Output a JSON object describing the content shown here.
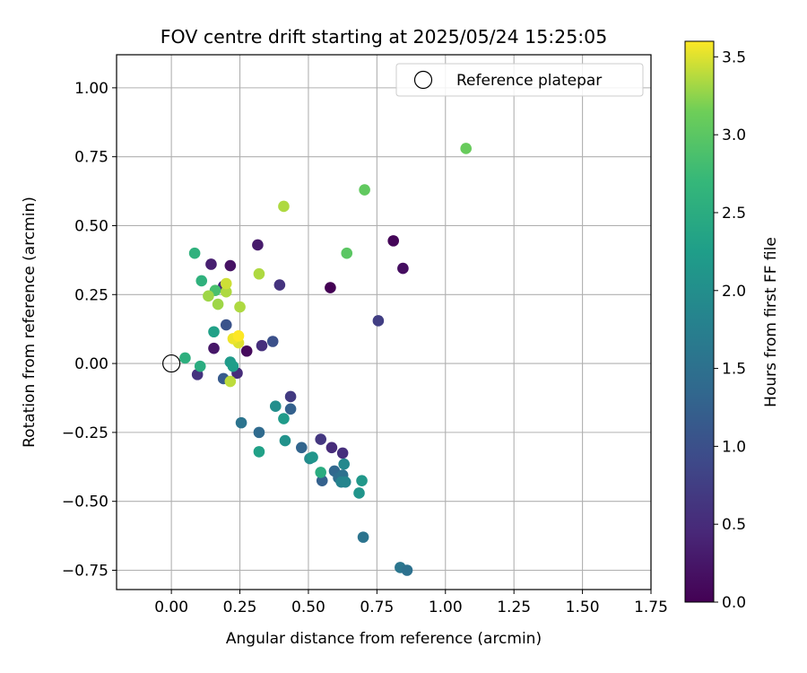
{
  "chart_data": {
    "type": "scatter",
    "title": "FOV centre drift starting at 2025/05/24 15:25:05",
    "xlabel": "Angular distance from reference (arcmin)",
    "ylabel": "Rotation from reference (arcmin)",
    "xlim": [
      -0.2,
      1.75
    ],
    "ylim": [
      -0.82,
      1.12
    ],
    "xticks": [
      0.0,
      0.25,
      0.5,
      0.75,
      1.0,
      1.25,
      1.5,
      1.75
    ],
    "xtick_labels": [
      "0.00",
      "0.25",
      "0.50",
      "0.75",
      "1.00",
      "1.25",
      "1.50",
      "1.75"
    ],
    "yticks": [
      -0.75,
      -0.5,
      -0.25,
      0.0,
      0.25,
      0.5,
      0.75,
      1.0
    ],
    "ytick_labels": [
      "−0.75",
      "−0.50",
      "−0.25",
      "0.00",
      "0.25",
      "0.50",
      "0.75",
      "1.00"
    ],
    "grid": true,
    "legend_position": "top-right",
    "legend_label": "Reference platepar",
    "reference_point": {
      "x": 0.0,
      "y": 0.0
    },
    "colorbar": {
      "label": "Hours from first FF file",
      "range": [
        0.0,
        3.6
      ],
      "ticks": [
        0.0,
        0.5,
        1.0,
        1.5,
        2.0,
        2.5,
        3.0,
        3.5
      ],
      "tick_labels": [
        "0.0",
        "0.5",
        "1.0",
        "1.5",
        "2.0",
        "2.5",
        "3.0",
        "3.5"
      ],
      "colormap": "viridis"
    },
    "points": [
      {
        "x": 0.58,
        "y": 0.275,
        "c": 0.0
      },
      {
        "x": 0.81,
        "y": 0.445,
        "c": 0.05
      },
      {
        "x": 0.845,
        "y": 0.345,
        "c": 0.15
      },
      {
        "x": 0.275,
        "y": 0.045,
        "c": 0.1
      },
      {
        "x": 0.155,
        "y": 0.055,
        "c": 0.25
      },
      {
        "x": 0.215,
        "y": 0.355,
        "c": 0.2
      },
      {
        "x": 0.315,
        "y": 0.43,
        "c": 0.3
      },
      {
        "x": 0.145,
        "y": 0.36,
        "c": 0.35
      },
      {
        "x": 0.095,
        "y": -0.04,
        "c": 0.6
      },
      {
        "x": 0.24,
        "y": -0.035,
        "c": 0.5
      },
      {
        "x": 0.33,
        "y": 0.065,
        "c": 0.55
      },
      {
        "x": 0.19,
        "y": 0.28,
        "c": 0.45
      },
      {
        "x": 0.395,
        "y": 0.285,
        "c": 0.6
      },
      {
        "x": 0.435,
        "y": -0.12,
        "c": 0.7
      },
      {
        "x": 0.545,
        "y": -0.275,
        "c": 0.65
      },
      {
        "x": 0.585,
        "y": -0.305,
        "c": 0.5
      },
      {
        "x": 0.625,
        "y": -0.325,
        "c": 0.55
      },
      {
        "x": 0.755,
        "y": 0.155,
        "c": 0.75
      },
      {
        "x": 0.37,
        "y": 0.08,
        "c": 1.0
      },
      {
        "x": 0.2,
        "y": 0.14,
        "c": 1.05
      },
      {
        "x": 0.19,
        "y": -0.055,
        "c": 1.15
      },
      {
        "x": 0.435,
        "y": -0.165,
        "c": 1.25
      },
      {
        "x": 0.475,
        "y": -0.305,
        "c": 1.3
      },
      {
        "x": 0.55,
        "y": -0.425,
        "c": 1.25
      },
      {
        "x": 0.595,
        "y": -0.39,
        "c": 1.35
      },
      {
        "x": 0.61,
        "y": -0.415,
        "c": 1.45
      },
      {
        "x": 0.625,
        "y": -0.405,
        "c": 1.5
      },
      {
        "x": 0.32,
        "y": -0.25,
        "c": 1.4
      },
      {
        "x": 0.255,
        "y": -0.215,
        "c": 1.55
      },
      {
        "x": 0.7,
        "y": -0.63,
        "c": 1.55
      },
      {
        "x": 0.835,
        "y": -0.74,
        "c": 1.6
      },
      {
        "x": 0.86,
        "y": -0.75,
        "c": 1.5
      },
      {
        "x": 0.62,
        "y": -0.43,
        "c": 1.8
      },
      {
        "x": 0.635,
        "y": -0.43,
        "c": 1.85
      },
      {
        "x": 0.63,
        "y": -0.365,
        "c": 1.9
      },
      {
        "x": 0.505,
        "y": -0.345,
        "c": 1.95
      },
      {
        "x": 0.38,
        "y": -0.155,
        "c": 2.0
      },
      {
        "x": 0.415,
        "y": -0.28,
        "c": 2.05
      },
      {
        "x": 0.515,
        "y": -0.34,
        "c": 2.1
      },
      {
        "x": 0.685,
        "y": -0.47,
        "c": 2.1
      },
      {
        "x": 0.695,
        "y": -0.425,
        "c": 2.15
      },
      {
        "x": 0.41,
        "y": -0.2,
        "c": 2.2
      },
      {
        "x": 0.215,
        "y": 0.005,
        "c": 2.2
      },
      {
        "x": 0.225,
        "y": -0.01,
        "c": 2.25
      },
      {
        "x": 0.32,
        "y": -0.32,
        "c": 2.3
      },
      {
        "x": 0.155,
        "y": 0.115,
        "c": 2.3
      },
      {
        "x": 0.545,
        "y": -0.395,
        "c": 2.5
      },
      {
        "x": 0.105,
        "y": -0.01,
        "c": 2.5
      },
      {
        "x": 0.05,
        "y": 0.02,
        "c": 2.55
      },
      {
        "x": 0.11,
        "y": 0.3,
        "c": 2.6
      },
      {
        "x": 0.085,
        "y": 0.4,
        "c": 2.6
      },
      {
        "x": 0.16,
        "y": 0.265,
        "c": 2.85
      },
      {
        "x": 0.64,
        "y": 0.4,
        "c": 3.0
      },
      {
        "x": 0.705,
        "y": 0.63,
        "c": 3.05
      },
      {
        "x": 1.075,
        "y": 0.78,
        "c": 3.1
      },
      {
        "x": 0.41,
        "y": 0.57,
        "c": 3.35
      },
      {
        "x": 0.32,
        "y": 0.325,
        "c": 3.35
      },
      {
        "x": 0.135,
        "y": 0.245,
        "c": 3.3
      },
      {
        "x": 0.17,
        "y": 0.215,
        "c": 3.3
      },
      {
        "x": 0.2,
        "y": 0.26,
        "c": 3.35
      },
      {
        "x": 0.2,
        "y": 0.29,
        "c": 3.45
      },
      {
        "x": 0.25,
        "y": 0.205,
        "c": 3.35
      },
      {
        "x": 0.215,
        "y": -0.065,
        "c": 3.4
      },
      {
        "x": 0.245,
        "y": 0.075,
        "c": 3.5
      },
      {
        "x": 0.225,
        "y": 0.09,
        "c": 3.55
      },
      {
        "x": 0.245,
        "y": 0.1,
        "c": 3.6
      }
    ]
  }
}
